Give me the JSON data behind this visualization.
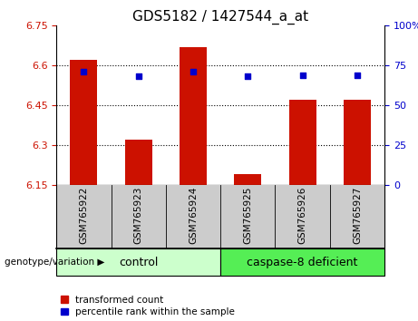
{
  "title": "GDS5182 / 1427544_a_at",
  "samples": [
    "GSM765922",
    "GSM765923",
    "GSM765924",
    "GSM765925",
    "GSM765926",
    "GSM765927"
  ],
  "transformed_counts": [
    6.62,
    6.32,
    6.67,
    6.19,
    6.47,
    6.47
  ],
  "percentile_ranks": [
    71,
    68,
    71,
    68,
    69,
    69
  ],
  "ylim_left": [
    6.15,
    6.75
  ],
  "ylim_right": [
    0,
    100
  ],
  "yticks_left": [
    6.15,
    6.3,
    6.45,
    6.6,
    6.75
  ],
  "yticks_right": [
    0,
    25,
    50,
    75,
    100
  ],
  "yticks_right_labels": [
    "0",
    "25",
    "50",
    "75",
    "100%"
  ],
  "hgrid_lines": [
    6.3,
    6.45,
    6.6
  ],
  "bar_color": "#cc1100",
  "dot_color": "#0000cc",
  "xtick_bg": "#cccccc",
  "group1_label": "control",
  "group2_label": "caspase-8 deficient",
  "group1_color": "#ccffcc",
  "group2_color": "#55ee55",
  "group1_indices": [
    0,
    1,
    2
  ],
  "group2_indices": [
    3,
    4,
    5
  ],
  "legend_red_label": "transformed count",
  "legend_blue_label": "percentile rank within the sample",
  "genotype_label": "genotype/variation",
  "bar_width": 0.5
}
